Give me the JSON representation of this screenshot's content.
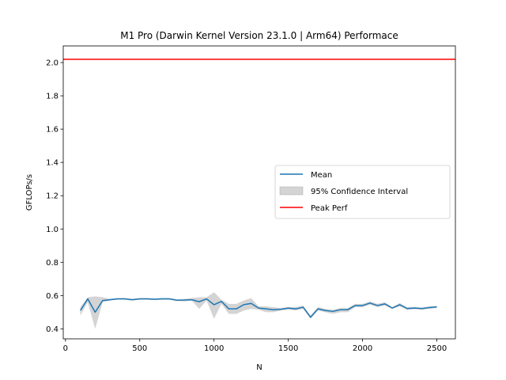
{
  "chart_data": {
    "type": "line",
    "title": "M1 Pro (Darwin Kernel Version 23.1.0 | Arm64) Performace",
    "xlabel": "N",
    "ylabel": "GFLOPs/s",
    "xlim": [
      -15,
      2625
    ],
    "ylim": [
      0.34,
      2.1
    ],
    "xticks": [
      0,
      500,
      1000,
      1500,
      2000,
      2500
    ],
    "yticks": [
      0.4,
      0.6,
      0.8,
      1.0,
      1.2,
      1.4,
      1.6,
      1.8,
      2.0
    ],
    "ytick_labels": [
      "0.4",
      "0.6",
      "0.8",
      "1.0",
      "1.2",
      "1.4",
      "1.6",
      "1.8",
      "2.0"
    ],
    "legend_position": "center-right",
    "series": [
      {
        "name": "Mean",
        "color": "#1f77b4",
        "x": [
          100,
          150,
          200,
          250,
          300,
          350,
          400,
          450,
          500,
          550,
          600,
          650,
          700,
          750,
          800,
          850,
          900,
          950,
          1000,
          1050,
          1100,
          1150,
          1200,
          1250,
          1300,
          1350,
          1400,
          1450,
          1500,
          1550,
          1600,
          1650,
          1700,
          1750,
          1800,
          1850,
          1900,
          1950,
          2000,
          2050,
          2100,
          2150,
          2200,
          2250,
          2300,
          2350,
          2400,
          2450,
          2500
        ],
        "values": [
          0.51,
          0.58,
          0.5,
          0.57,
          0.575,
          0.58,
          0.58,
          0.575,
          0.58,
          0.58,
          0.578,
          0.58,
          0.58,
          0.572,
          0.573,
          0.575,
          0.563,
          0.58,
          0.545,
          0.565,
          0.52,
          0.52,
          0.545,
          0.553,
          0.525,
          0.52,
          0.515,
          0.518,
          0.525,
          0.52,
          0.53,
          0.47,
          0.52,
          0.51,
          0.505,
          0.515,
          0.515,
          0.54,
          0.54,
          0.555,
          0.54,
          0.55,
          0.525,
          0.545,
          0.522,
          0.525,
          0.522,
          0.528,
          0.532
        ]
      },
      {
        "name": "95% Confidence Interval",
        "color": "#d3d3d3",
        "x": [
          100,
          150,
          200,
          250,
          300,
          350,
          400,
          450,
          500,
          550,
          600,
          650,
          700,
          750,
          800,
          850,
          900,
          950,
          1000,
          1050,
          1100,
          1150,
          1200,
          1250,
          1300,
          1350,
          1400,
          1450,
          1500,
          1550,
          1600,
          1650,
          1700,
          1750,
          1800,
          1850,
          1900,
          1950,
          2000,
          2050,
          2100,
          2150,
          2200,
          2250,
          2300,
          2350,
          2400,
          2450,
          2500
        ],
        "lower": [
          0.48,
          0.56,
          0.4,
          0.56,
          0.57,
          0.575,
          0.575,
          0.57,
          0.575,
          0.575,
          0.573,
          0.575,
          0.575,
          0.568,
          0.565,
          0.57,
          0.52,
          0.57,
          0.46,
          0.55,
          0.49,
          0.49,
          0.51,
          0.52,
          0.515,
          0.5,
          0.5,
          0.51,
          0.515,
          0.51,
          0.52,
          0.46,
          0.51,
          0.5,
          0.49,
          0.5,
          0.5,
          0.53,
          0.53,
          0.545,
          0.53,
          0.54,
          0.52,
          0.535,
          0.515,
          0.518,
          0.515,
          0.52,
          0.525
        ],
        "upper": [
          0.53,
          0.59,
          0.595,
          0.59,
          0.58,
          0.585,
          0.585,
          0.58,
          0.585,
          0.585,
          0.583,
          0.585,
          0.585,
          0.577,
          0.58,
          0.585,
          0.59,
          0.59,
          0.62,
          0.575,
          0.55,
          0.55,
          0.57,
          0.585,
          0.535,
          0.535,
          0.53,
          0.525,
          0.53,
          0.53,
          0.54,
          0.48,
          0.53,
          0.52,
          0.515,
          0.525,
          0.525,
          0.55,
          0.55,
          0.565,
          0.55,
          0.56,
          0.53,
          0.555,
          0.53,
          0.532,
          0.528,
          0.535,
          0.538
        ]
      },
      {
        "name": "Peak Perf",
        "color": "#ff0000",
        "y": 2.02
      }
    ]
  }
}
